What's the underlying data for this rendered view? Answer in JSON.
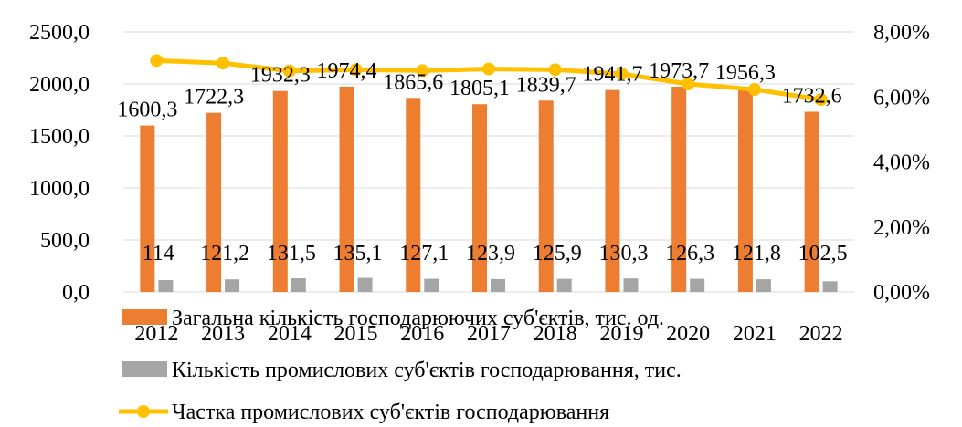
{
  "chart_data": {
    "type": "bar",
    "categories": [
      "2012",
      "2013",
      "2014",
      "2015",
      "2016",
      "2017",
      "2018",
      "2019",
      "2020",
      "2021",
      "2022"
    ],
    "series": [
      {
        "name": "Загальна кількість господарюючих суб'єктів, тис. од.",
        "kind": "bar",
        "axis": "left",
        "color": "#ED7D31",
        "values": [
          1600.3,
          1722.3,
          1932.3,
          1974.4,
          1865.6,
          1805.1,
          1839.7,
          1941.7,
          1973.7,
          1956.3,
          1732.6
        ],
        "labels": [
          "1600,3",
          "1722,3",
          "1932,3",
          "1974,4",
          "1865,6",
          "1805,1",
          "1839,7",
          "1941,7",
          "1973,7",
          "1956,3",
          "1732,6"
        ]
      },
      {
        "name": "Кількість промислових суб'єктів господарювання, тис.",
        "kind": "bar",
        "axis": "left",
        "color": "#A5A5A5",
        "values": [
          114,
          121.2,
          131.5,
          135.1,
          127.1,
          123.9,
          125.9,
          130.3,
          126.3,
          121.8,
          102.5
        ],
        "labels": [
          "114",
          "121,2",
          "131,5",
          "135,1",
          "127,1",
          "123,9",
          "125,9",
          "130,3",
          "126,3",
          "121,8",
          "102,5"
        ]
      },
      {
        "name": "Частка промислових суб'єктів господарювання",
        "kind": "line",
        "axis": "right",
        "color": "#FFC000",
        "values": [
          7.12,
          7.04,
          6.8,
          6.84,
          6.81,
          6.86,
          6.84,
          6.71,
          6.4,
          6.23,
          5.92
        ]
      }
    ],
    "y_left": {
      "min": 0,
      "max": 2500,
      "ticks": [
        "0,0",
        "500,0",
        "1000,0",
        "1500,0",
        "2000,0",
        "2500,0"
      ]
    },
    "y_right": {
      "min": 0,
      "max": 8,
      "ticks": [
        "0,00%",
        "2,00%",
        "4,00%",
        "6,00%",
        "8,00%"
      ]
    },
    "grid": true,
    "legend_position": "bottom"
  }
}
